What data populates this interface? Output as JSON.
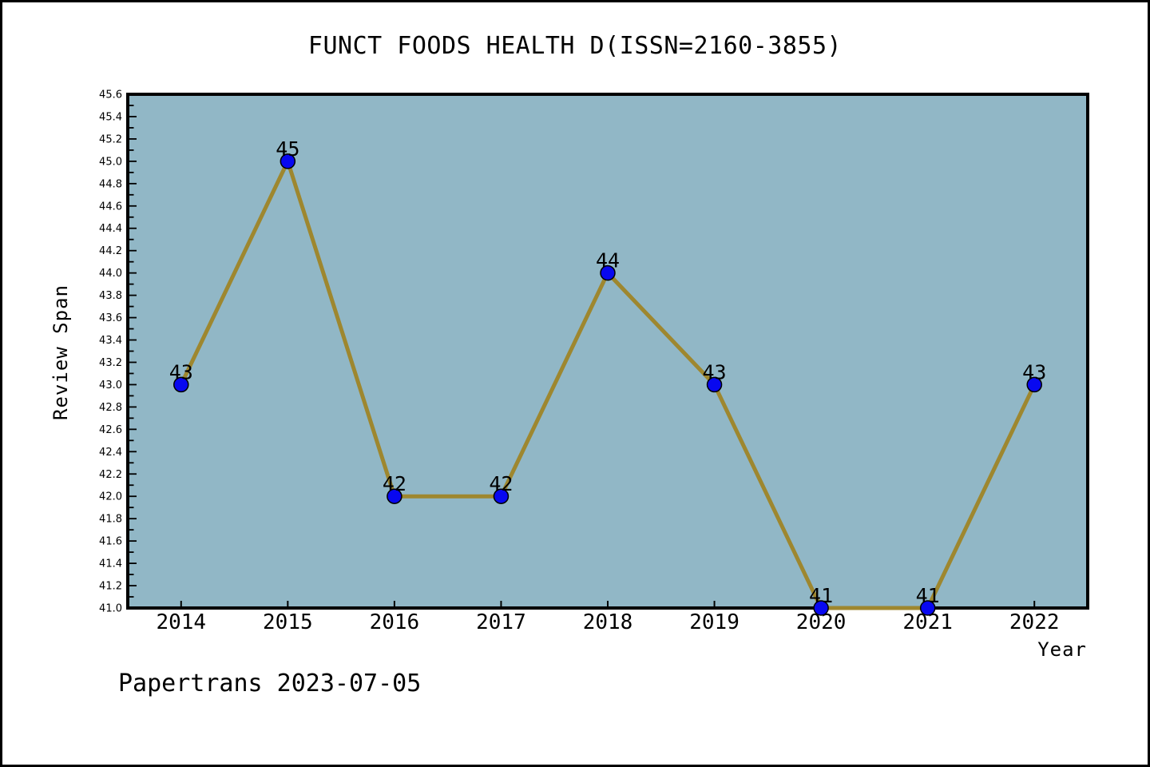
{
  "title": "FUNCT FOODS HEALTH D(ISSN=2160-3855)",
  "footer": "Papertrans 2023-07-05",
  "chart_data": {
    "type": "line",
    "title": "FUNCT FOODS HEALTH D(ISSN=2160-3855)",
    "xlabel": "Year",
    "ylabel": "Review Span",
    "x": [
      2014,
      2015,
      2016,
      2017,
      2018,
      2019,
      2020,
      2021,
      2022
    ],
    "values": [
      43,
      45,
      42,
      42,
      44,
      43,
      41,
      41,
      43
    ],
    "point_labels": [
      "43",
      "45",
      "42",
      "42",
      "44",
      "43",
      "41",
      "41",
      "43"
    ],
    "xlim": [
      2013.5,
      2022.5
    ],
    "ylim": [
      41.0,
      45.6
    ],
    "y_major_tick_step": 0.2,
    "y_minor_tick_step": 0.1,
    "x_tick_step": 1,
    "grid": false,
    "legend": null,
    "colors": {
      "plot_background": "#91B7C6",
      "line": "#9E872F",
      "marker_fill": "#0808F0",
      "marker_edge": "#000000",
      "axis": "#000000",
      "text": "#000000",
      "page_background": "#FFFFFF",
      "page_border": "#000000"
    }
  }
}
